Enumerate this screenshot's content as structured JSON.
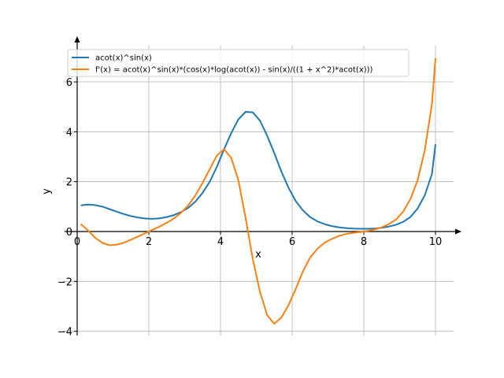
{
  "chart_data": {
    "type": "line",
    "title": "",
    "xlabel": "x",
    "ylabel": "y",
    "xlim": [
      0,
      10.5
    ],
    "ylim": [
      -4.2,
      7.5
    ],
    "xticks": [
      0,
      2,
      4,
      6,
      8,
      10
    ],
    "yticks": [
      -4,
      -2,
      0,
      2,
      4,
      6
    ],
    "xtick_labels": [
      "0",
      "2",
      "4",
      "6",
      "8",
      "10"
    ],
    "ytick_labels": [
      "−4",
      "−2",
      "0",
      "2",
      "4",
      "6"
    ],
    "grid": true,
    "legend": "top-left",
    "series": [
      {
        "name": "acot(x)^sin(x)",
        "color": "#1f77b4",
        "x": [
          0.1,
          0.3,
          0.5,
          0.7,
          0.9,
          1.1,
          1.3,
          1.5,
          1.7,
          1.9,
          2.1,
          2.3,
          2.5,
          2.7,
          2.9,
          3.1,
          3.3,
          3.5,
          3.7,
          3.9,
          4.1,
          4.3,
          4.5,
          4.7,
          4.9,
          5.1,
          5.3,
          5.5,
          5.7,
          5.9,
          6.1,
          6.3,
          6.5,
          6.7,
          6.9,
          7.1,
          7.3,
          7.5,
          7.7,
          7.9,
          8.1,
          8.3,
          8.5,
          8.7,
          8.9,
          9.1,
          9.3,
          9.5,
          9.7,
          9.9,
          10.0
        ],
        "y": [
          1.05,
          1.08,
          1.06,
          1.0,
          0.9,
          0.8,
          0.7,
          0.62,
          0.56,
          0.52,
          0.51,
          0.53,
          0.58,
          0.66,
          0.78,
          0.95,
          1.2,
          1.55,
          2.0,
          2.6,
          3.3,
          3.95,
          4.5,
          4.8,
          4.78,
          4.45,
          3.85,
          3.15,
          2.4,
          1.75,
          1.22,
          0.85,
          0.58,
          0.41,
          0.3,
          0.22,
          0.17,
          0.14,
          0.12,
          0.11,
          0.11,
          0.12,
          0.15,
          0.2,
          0.27,
          0.39,
          0.58,
          0.92,
          1.45,
          2.3,
          3.5
        ]
      },
      {
        "name": "f'(x) = acot(x)^sin(x)*(cos(x)*log(acot(x)) - sin(x)/((1 + x^2)*acot(x)))",
        "color": "#ff7f0e",
        "x": [
          0.1,
          0.3,
          0.5,
          0.7,
          0.9,
          1.1,
          1.3,
          1.5,
          1.7,
          1.9,
          2.1,
          2.3,
          2.5,
          2.7,
          2.9,
          3.1,
          3.3,
          3.5,
          3.7,
          3.9,
          4.1,
          4.3,
          4.5,
          4.7,
          4.9,
          5.1,
          5.3,
          5.5,
          5.7,
          5.9,
          6.1,
          6.3,
          6.5,
          6.7,
          6.9,
          7.1,
          7.3,
          7.5,
          7.7,
          7.9,
          8.1,
          8.3,
          8.5,
          8.7,
          8.9,
          9.1,
          9.3,
          9.5,
          9.7,
          9.9,
          10.0
        ],
        "y": [
          0.3,
          0.05,
          -0.25,
          -0.45,
          -0.55,
          -0.53,
          -0.45,
          -0.33,
          -0.2,
          -0.07,
          0.07,
          0.2,
          0.35,
          0.52,
          0.75,
          1.05,
          1.45,
          1.95,
          2.5,
          3.05,
          3.3,
          2.95,
          2.05,
          0.55,
          -1.1,
          -2.4,
          -3.35,
          -3.7,
          -3.45,
          -2.95,
          -2.3,
          -1.6,
          -1.05,
          -0.7,
          -0.45,
          -0.3,
          -0.18,
          -0.1,
          -0.05,
          -0.02,
          0.02,
          0.08,
          0.17,
          0.3,
          0.48,
          0.8,
          1.3,
          2.05,
          3.25,
          5.1,
          6.95
        ]
      }
    ]
  }
}
